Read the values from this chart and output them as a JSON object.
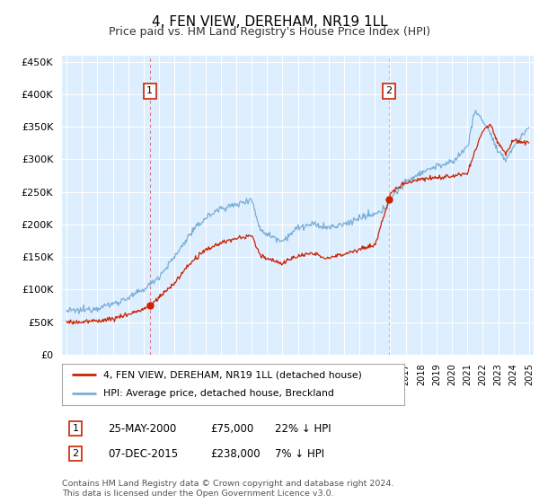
{
  "title": "4, FEN VIEW, DEREHAM, NR19 1LL",
  "subtitle": "Price paid vs. HM Land Registry's House Price Index (HPI)",
  "ylim": [
    0,
    460000
  ],
  "yticks": [
    0,
    50000,
    100000,
    150000,
    200000,
    250000,
    300000,
    350000,
    400000,
    450000
  ],
  "xlim_start": 1994.7,
  "xlim_end": 2025.3,
  "plot_bg": "#ddeeff",
  "grid_color": "#ffffff",
  "transaction1_x": 2000.4,
  "transaction1_y": 75000,
  "transaction2_x": 2015.92,
  "transaction2_y": 238000,
  "legend_line1": "4, FEN VIEW, DEREHAM, NR19 1LL (detached house)",
  "legend_line2": "HPI: Average price, detached house, Breckland",
  "table_row1": [
    "1",
    "25-MAY-2000",
    "£75,000",
    "22% ↓ HPI"
  ],
  "table_row2": [
    "2",
    "07-DEC-2015",
    "£238,000",
    "7% ↓ HPI"
  ],
  "footnote": "Contains HM Land Registry data © Crown copyright and database right 2024.\nThis data is licensed under the Open Government Licence v3.0.",
  "red_color": "#cc2200",
  "blue_color": "#7aaed6",
  "vline_color": "#dd4444",
  "marker_box_color": "#cc2200",
  "hpi_anchors_x": [
    1995,
    1996,
    1997,
    1998,
    1999,
    2000,
    2001,
    2002,
    2003,
    2004,
    2005,
    2006,
    2007,
    2007.5,
    2008,
    2009,
    2010,
    2011,
    2012,
    2013,
    2014,
    2015,
    2015.5,
    2016,
    2017,
    2018,
    2019,
    2020,
    2021,
    2021.5,
    2022,
    2022.5,
    2023,
    2023.5,
    2024,
    2025
  ],
  "hpi_anchors_y": [
    67000,
    68000,
    72000,
    78000,
    87000,
    100000,
    120000,
    150000,
    185000,
    210000,
    225000,
    230000,
    240000,
    195000,
    185000,
    175000,
    195000,
    200000,
    195000,
    200000,
    210000,
    215000,
    220000,
    240000,
    265000,
    280000,
    290000,
    295000,
    320000,
    375000,
    360000,
    340000,
    310000,
    300000,
    320000,
    350000
  ],
  "red_anchors_x": [
    1995,
    1996,
    1997,
    1998,
    1999,
    2000,
    2000.4,
    2001,
    2002,
    2003,
    2004,
    2005,
    2006,
    2007,
    2007.5,
    2008,
    2009,
    2010,
    2011,
    2012,
    2013,
    2014,
    2015,
    2015.92,
    2016,
    2017,
    2018,
    2019,
    2020,
    2021,
    2022,
    2022.5,
    2023,
    2023.5,
    2024,
    2025
  ],
  "red_anchors_y": [
    50000,
    50000,
    52000,
    55000,
    62000,
    70000,
    75000,
    88000,
    110000,
    140000,
    160000,
    172000,
    178000,
    183000,
    155000,
    148000,
    140000,
    152000,
    155000,
    148000,
    155000,
    162000,
    168000,
    238000,
    248000,
    265000,
    270000,
    272000,
    274000,
    278000,
    345000,
    355000,
    325000,
    310000,
    330000,
    325000
  ]
}
